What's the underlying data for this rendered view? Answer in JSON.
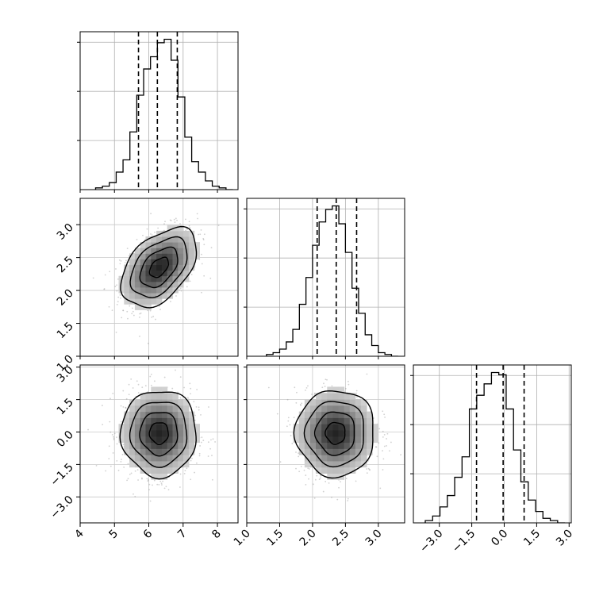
{
  "chart_data": {
    "type": "corner",
    "parameters": [
      "",
      "",
      ""
    ],
    "ranges": [
      [
        4.0,
        8.6
      ],
      [
        1.0,
        3.4
      ],
      [
        -4.2,
        3.1
      ]
    ],
    "ticks": [
      [
        "4",
        "5",
        "6",
        "7",
        "8"
      ],
      [
        "1.0",
        "1.5",
        "2.0",
        "2.5",
        "3.0"
      ],
      [
        "−3.0",
        "−1.5",
        "0.0",
        "1.5",
        "3.0"
      ]
    ],
    "tick_values": [
      [
        4,
        5,
        6,
        7,
        8
      ],
      [
        1.0,
        1.5,
        2.0,
        2.5,
        3.0
      ],
      [
        -3.0,
        -1.5,
        0.0,
        1.5,
        3.0
      ]
    ],
    "quantiles": [
      0.16,
      0.5,
      0.84
    ],
    "quantile_values": [
      [
        5.7,
        6.25,
        6.83
      ],
      [
        2.07,
        2.36,
        2.67
      ],
      [
        -1.28,
        -0.05,
        0.92
      ]
    ],
    "grid": true,
    "histograms": [
      {
        "bin_start": 4.45,
        "bin_width": 0.2,
        "counts": [
          1,
          2,
          4,
          10,
          17,
          33,
          54,
          69,
          76,
          84,
          86,
          74,
          53,
          30,
          16,
          10,
          5,
          2,
          1,
          0
        ]
      },
      {
        "bin_start": 1.3,
        "bin_width": 0.1,
        "counts": [
          1,
          2,
          4,
          8,
          15,
          29,
          44,
          62,
          75,
          82,
          84,
          74,
          58,
          38,
          24,
          12,
          6,
          2,
          1,
          0
        ]
      },
      {
        "bin_start": -3.65,
        "bin_width": 0.34,
        "counts": [
          1,
          3,
          7,
          12,
          20,
          29,
          50,
          56,
          61,
          66,
          65,
          50,
          32,
          18,
          10,
          5,
          2,
          1,
          0
        ]
      }
    ],
    "pairs": [
      {
        "x_param": 0,
        "y_param": 1,
        "mean": [
          6.3,
          2.35
        ],
        "sd": [
          0.55,
          0.3
        ],
        "correlation": 0.45
      },
      {
        "x_param": 0,
        "y_param": 2,
        "mean": [
          6.3,
          -0.05
        ],
        "sd": [
          0.55,
          1.0
        ],
        "correlation": 0.0
      },
      {
        "x_param": 1,
        "y_param": 2,
        "mean": [
          2.35,
          -0.05
        ],
        "sd": [
          0.3,
          1.0
        ],
        "correlation": 0.0
      }
    ],
    "contour_levels_sigma": [
      0.5,
      1.0,
      1.5,
      2.0
    ]
  }
}
